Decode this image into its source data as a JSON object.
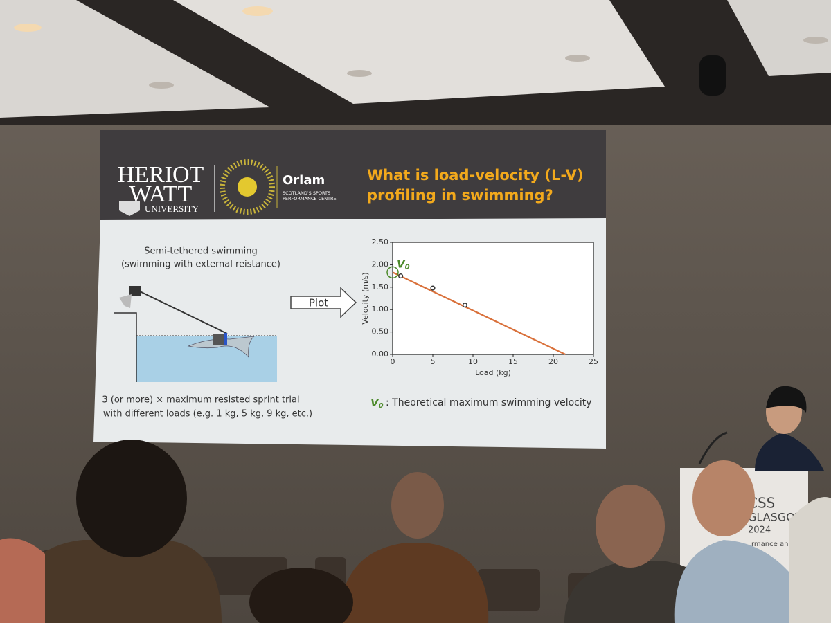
{
  "slide": {
    "title_lines": [
      "What is load-velocity (L-V)",
      "profiling in swimming?"
    ],
    "logo_heriot": "HERIOT",
    "logo_watt": "WATT",
    "logo_university": "UNIVERSITY",
    "logo_oriam": "Oriam",
    "logo_oriam_sub": [
      "SCOTLAND'S SPORTS",
      "PERFORMANCE CENTRE"
    ],
    "left_caption": [
      "Semi-tethered swimming",
      "(swimming with external reistance)"
    ],
    "arrow_label": "Plot",
    "left_note": [
      "3 (or more) × maximum resisted sprint trial",
      "with different loads (e.g. 1 kg, 5 kg, 9 kg, etc.)"
    ],
    "v0_symbol": "V",
    "v0_sub": "0",
    "v0_definition": ": Theoretical maximum swimming velocity"
  },
  "banner": [
    "CSS",
    "GLASGOW",
    "2024",
    "rmance and"
  ],
  "chart_data": {
    "type": "scatter",
    "x_label": "Load (kg)",
    "y_label": "Velocity (m/s)",
    "x": [
      1,
      5,
      9
    ],
    "values": [
      1.75,
      1.48,
      1.1
    ],
    "point_color": "#333333",
    "line": {
      "x": [
        0,
        21.5
      ],
      "values": [
        1.83,
        0
      ],
      "color": "#d9703a"
    },
    "annotation": {
      "text": "V",
      "sub": "0",
      "x": 0,
      "y": 1.83,
      "color": "#4c8a2a"
    },
    "xlim": [
      0,
      25
    ],
    "ylim": [
      0,
      2.5
    ],
    "xticks": [
      0,
      5,
      10,
      15,
      20,
      25
    ],
    "yticks": [
      {
        "value": 0,
        "label": "0.00"
      },
      {
        "value": 0.5,
        "label": "0.50"
      },
      {
        "value": 1,
        "label": "1.00"
      },
      {
        "value": 1.5,
        "label": "1.50"
      },
      {
        "value": 2,
        "label": "2.00"
      },
      {
        "value": 2.5,
        "label": "2.50"
      }
    ]
  }
}
